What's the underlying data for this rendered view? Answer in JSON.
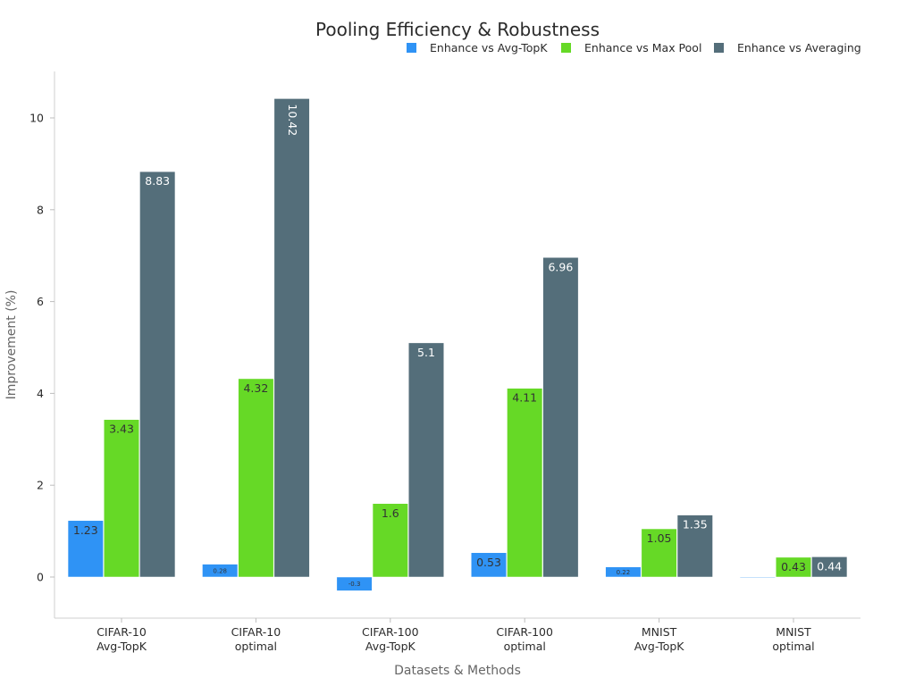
{
  "chart_data": {
    "type": "bar",
    "title": "Pooling Efficiency & Robustness",
    "xlabel": "Datasets & Methods",
    "ylabel": "Improvement (%)",
    "categories": [
      [
        "CIFAR-10",
        "Avg-TopK"
      ],
      [
        "CIFAR-10",
        "optimal"
      ],
      [
        "CIFAR-100",
        "Avg-TopK"
      ],
      [
        "CIFAR-100",
        "optimal"
      ],
      [
        "MNIST",
        "Avg-TopK"
      ],
      [
        "MNIST",
        "optimal"
      ]
    ],
    "series": [
      {
        "name": "Enhance vs Avg-TopK",
        "color": "#2f93f5",
        "values": [
          1.23,
          0.28,
          -0.3,
          0.53,
          0.22,
          0.0
        ],
        "labels": [
          "1.23",
          "0.28",
          "-0.3",
          "0.53",
          "0.22",
          ""
        ]
      },
      {
        "name": "Enhance vs Max Pool",
        "color": "#66d926",
        "values": [
          3.43,
          4.32,
          1.6,
          4.11,
          1.05,
          0.43
        ],
        "labels": [
          "3.43",
          "4.32",
          "1.6",
          "4.11",
          "1.05",
          "0.43"
        ]
      },
      {
        "name": "Enhance vs Averaging",
        "color": "#546e7a",
        "values": [
          8.83,
          10.42,
          5.1,
          6.96,
          1.35,
          0.44
        ],
        "labels": [
          "8.83",
          "10.42",
          "5.1",
          "6.96",
          "1.35",
          "0.44"
        ]
      }
    ],
    "ylim": [
      -0.9,
      11.0
    ],
    "yticks": [
      0,
      2,
      4,
      6,
      8,
      10
    ],
    "grid": false,
    "legend_position": "top-right"
  }
}
